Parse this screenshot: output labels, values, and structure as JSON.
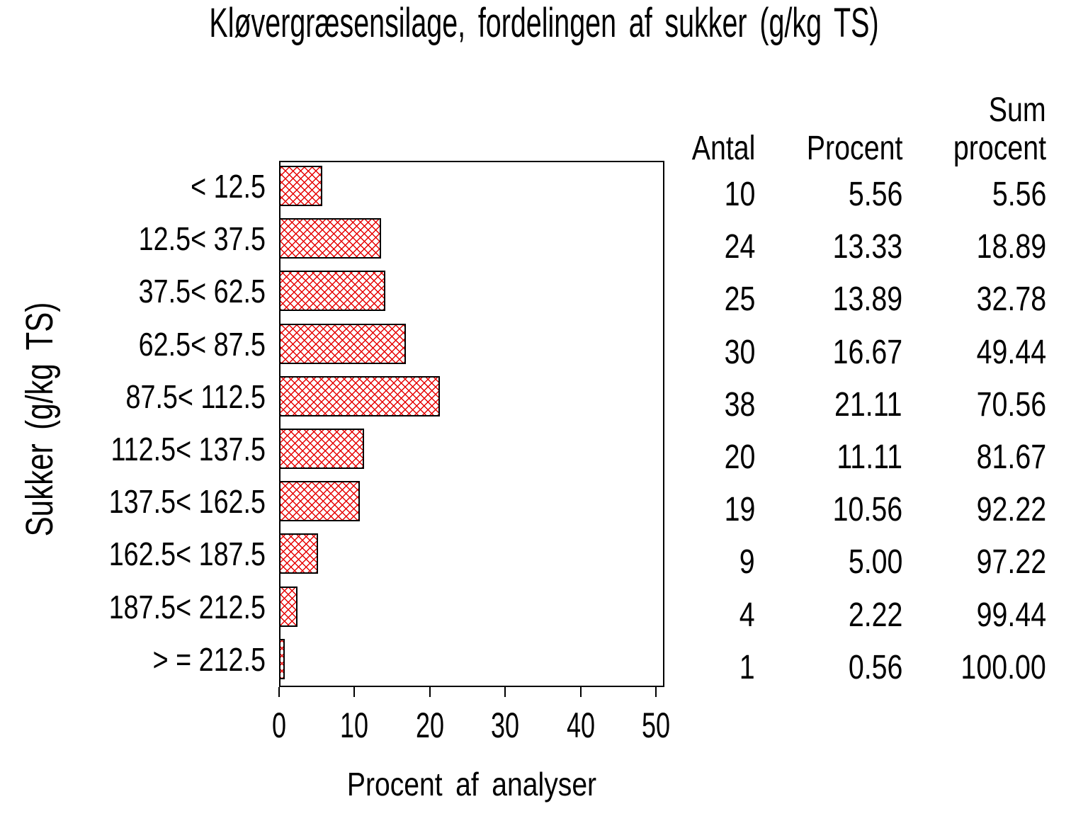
{
  "title": "Kløvergræsensilage, fordelingen af sukker (g/kg TS)",
  "y_axis_label": "Sukker (g/kg TS)",
  "x_axis_label": "Procent af analyser",
  "x_tick_labels": [
    "0",
    "10",
    "20",
    "30",
    "40",
    "50"
  ],
  "table": {
    "col1_header": "Antal",
    "col2_header": "Procent",
    "col3_header_line1": "Sum",
    "col3_header_line2": "procent",
    "rows": [
      [
        "10",
        "5.56",
        "5.56"
      ],
      [
        "24",
        "13.33",
        "18.89"
      ],
      [
        "25",
        "13.89",
        "32.78"
      ],
      [
        "30",
        "16.67",
        "49.44"
      ],
      [
        "38",
        "21.11",
        "70.56"
      ],
      [
        "20",
        "11.11",
        "81.67"
      ],
      [
        "19",
        "10.56",
        "92.22"
      ],
      [
        "9",
        "5.00",
        "97.22"
      ],
      [
        "4",
        "2.22",
        "99.44"
      ],
      [
        "1",
        "0.56",
        "100.00"
      ]
    ]
  },
  "chart_data": {
    "type": "bar",
    "orientation": "horizontal",
    "title": "Kløvergræsensilage, fordelingen af sukker (g/kg TS)",
    "xlabel": "Procent af analyser",
    "ylabel": "Sukker (g/kg TS)",
    "xlim": [
      0,
      50
    ],
    "xticks": [
      0,
      10,
      20,
      30,
      40,
      50
    ],
    "grid": false,
    "legend": "none",
    "bar_fill_pattern": "red diagonal crosshatch on white",
    "bar_pattern_color": "#e60000",
    "bar_border_color": "#000000",
    "categories": [
      "< 12.5",
      "12.5< 37.5",
      "37.5< 62.5",
      "62.5< 87.5",
      "87.5< 112.5",
      "112.5< 137.5",
      "137.5< 162.5",
      "162.5< 187.5",
      "187.5< 212.5",
      "> = 212.5"
    ],
    "series": [
      {
        "name": "Procent af analyser",
        "values": [
          5.56,
          13.33,
          13.89,
          16.67,
          21.11,
          11.11,
          10.56,
          5.0,
          2.22,
          0.56
        ]
      },
      {
        "name": "Antal",
        "values": [
          10,
          24,
          25,
          30,
          38,
          20,
          19,
          9,
          4,
          1
        ]
      },
      {
        "name": "Sum procent",
        "values": [
          5.56,
          18.89,
          32.78,
          49.44,
          70.56,
          81.67,
          92.22,
          97.22,
          99.44,
          100.0
        ]
      }
    ]
  }
}
